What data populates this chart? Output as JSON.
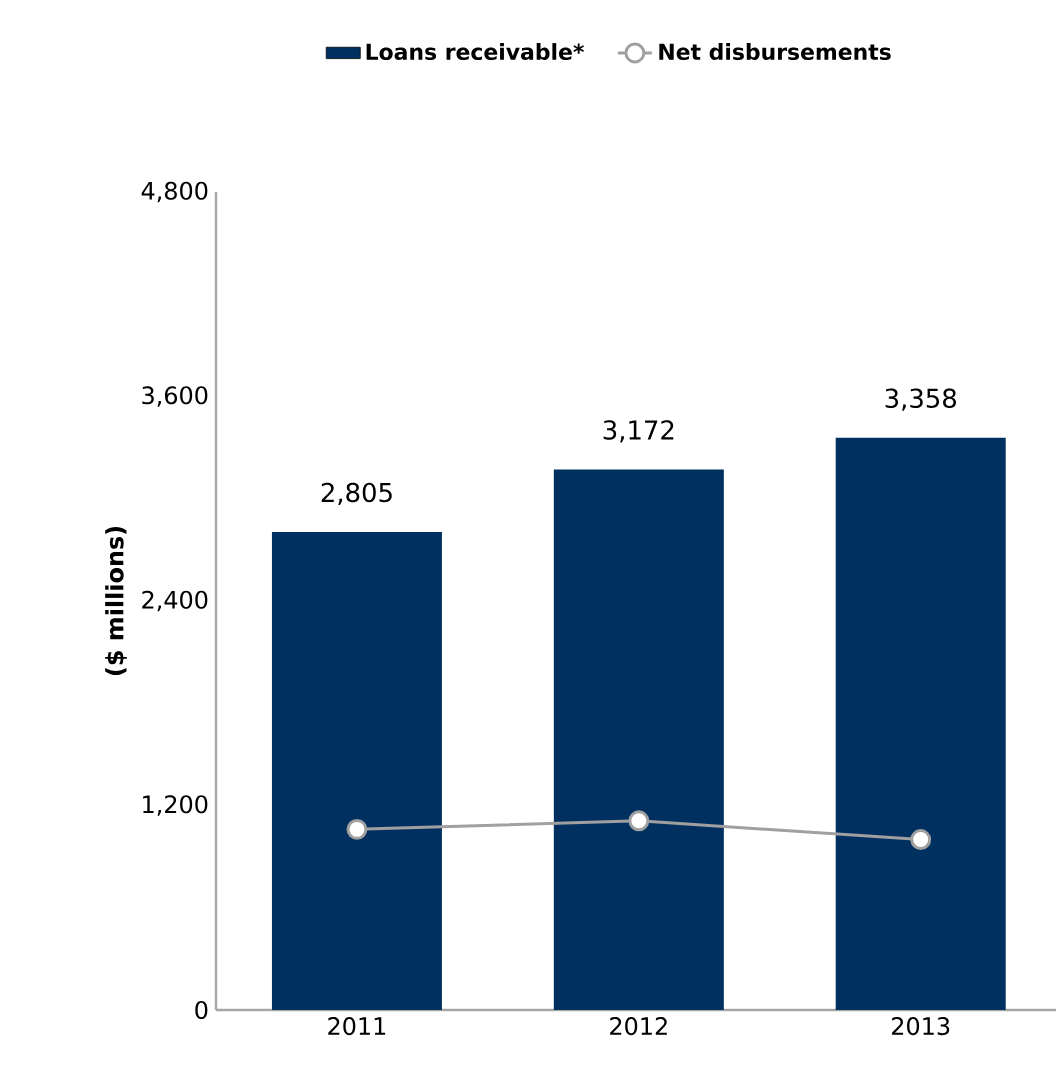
{
  "chart_data": {
    "type": "bar",
    "categories": [
      "2011",
      "2012",
      "2013"
    ],
    "ylabel": "($ millions)",
    "ylim": [
      0,
      4800
    ],
    "yticks": [
      0,
      {
        "value": 1200,
        "label": "1,200"
      },
      {
        "value": 2400,
        "label": "2,400"
      },
      {
        "value": 3600,
        "label": "3,600"
      },
      {
        "value": 4800,
        "label": "4,800"
      }
    ],
    "legend": "top",
    "series": [
      {
        "name": "Loans receivable*",
        "color": "#00305f",
        "values": [
          2805,
          3172,
          3358
        ],
        "value_labels": [
          "2,805",
          "3,172",
          "3,358"
        ]
      },
      {
        "name": "Net disbursements",
        "type": "line",
        "color": "#a0a0a0",
        "marker": "circle",
        "values": [
          1060,
          1110,
          1000
        ]
      }
    ]
  }
}
